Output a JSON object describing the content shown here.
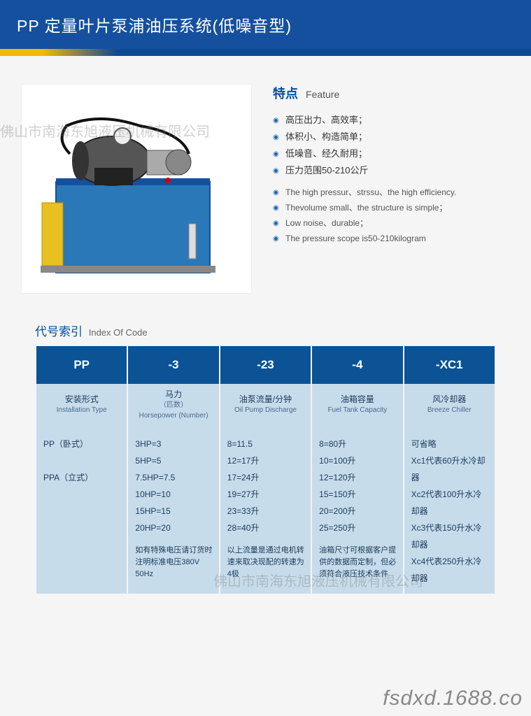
{
  "header": {
    "title": "PP 定量叶片泵浦油压系统(低噪音型)"
  },
  "watermark": {
    "text1": "佛山市南海东旭液压机械有限公司",
    "text2": "佛山市南海东旭液压机械有限公司"
  },
  "feature": {
    "title_cn": "特点",
    "title_en": "Feature",
    "items_cn": [
      "高压出力、高效率；",
      "体积小、构造简单；",
      "低噪音、经久耐用；",
      "压力范围50-210公斤"
    ],
    "items_en": [
      "The high pressur、strssu、the high efficiency.",
      "Thevolume small、the structure is simple；",
      "Low noise、durable；",
      "The pressure scope is50-210kilogram"
    ]
  },
  "index": {
    "title_cn": "代号索引",
    "title_en": "Index Of Code",
    "columns": [
      {
        "code": "PP",
        "head_cn": "安装形式",
        "head_en": "Installation Type"
      },
      {
        "code": "-3",
        "head_cn": "马力",
        "head_sub": "（匹数）",
        "head_en": "Horsepower\n(Number)"
      },
      {
        "code": "-23",
        "head_cn": "油泵流量/分钟",
        "head_en": "Oil Pump Discharge"
      },
      {
        "code": "-4",
        "head_cn": "油箱容量",
        "head_en": "Fuel Tank Capacity"
      },
      {
        "code": "-XC1",
        "head_cn": "风冷却器",
        "head_en": "Breeze Chiller"
      }
    ],
    "body": {
      "c0": {
        "lines": [
          "PP（卧式）",
          "",
          "PPA（立式）"
        ],
        "note": ""
      },
      "c1": {
        "lines": [
          "3HP=3",
          "5HP=5",
          "7.5HP=7.5",
          "10HP=10",
          "15HP=15",
          "20HP=20"
        ],
        "note": "如有特殊电压请订货时注明标准电压380V 50Hz"
      },
      "c2": {
        "lines": [
          "8=11.5",
          "12=17升",
          "17=24升",
          "19=27升",
          "23=33升",
          "28=40升"
        ],
        "note": "以上流量是通过电机转速来取决现配的转速为4极"
      },
      "c3": {
        "lines": [
          "8=80升",
          "10=100升",
          "12=120升",
          "15=150升",
          "20=200升",
          "25=250升"
        ],
        "note": "油箱尺寸可根据客户提供的数据而定制，但必须符合液压技术条件"
      },
      "c4": {
        "lines": [
          "可省略",
          "Xc1代表60升水冷却器",
          "Xc2代表100升水冷却器",
          "Xc3代表150升水冷却器",
          "Xc4代表250升水冷却器"
        ],
        "note": ""
      }
    }
  },
  "footer": {
    "url": "fsdxd.1688.co"
  },
  "colors": {
    "header_bg": "#15509e",
    "table_head": "#0b5394",
    "table_cell": "#c7dceb",
    "accent": "#024ea2"
  }
}
